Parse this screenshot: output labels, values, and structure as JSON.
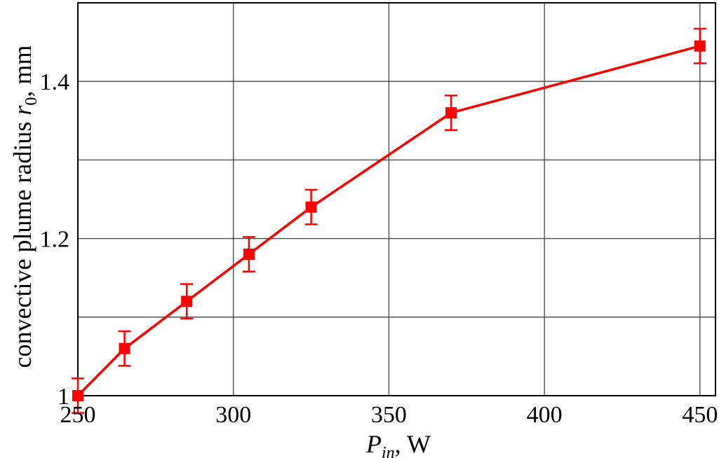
{
  "chart_data": {
    "type": "line",
    "title": "",
    "xlabel": {
      "main": "P",
      "sub": "in",
      "rest": ", W"
    },
    "ylabel": {
      "main": "convective plume radius ",
      "var": "r",
      "sub": "0",
      "rest": ", mm"
    },
    "xlim": [
      250,
      455
    ],
    "ylim": [
      1.0,
      1.5
    ],
    "x_ticks": [
      250,
      300,
      350,
      400,
      450
    ],
    "x_tick_labels": [
      "250",
      "300",
      "350",
      "400",
      "450"
    ],
    "y_ticks": [
      1.0,
      1.1,
      1.2,
      1.3,
      1.4
    ],
    "y_tick_labels": [
      "1",
      "",
      "1.2",
      "",
      "1.4"
    ],
    "grid": true,
    "series": [
      {
        "color": "#ff0000",
        "marker": "square",
        "x": [
          250,
          265,
          285,
          305,
          325,
          370,
          450
        ],
        "y": [
          1.0,
          1.06,
          1.12,
          1.18,
          1.24,
          1.36,
          1.445
        ],
        "err": [
          0.022,
          0.022,
          0.022,
          0.022,
          0.022,
          0.022,
          0.022
        ]
      }
    ]
  }
}
